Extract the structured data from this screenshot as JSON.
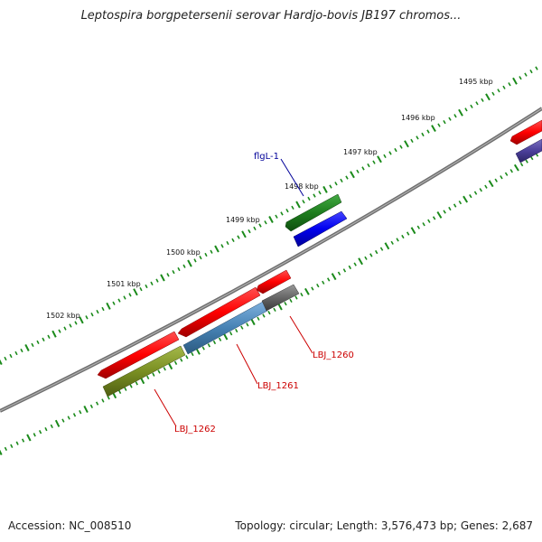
{
  "title": "Leptospira borgpetersenii serovar Hardjo-bovis JB197 chromos...",
  "footer": {
    "accession": "Accession: NC_008510",
    "summary": "Topology: circular; Length: 3,576,473 bp; Genes: 2,687"
  },
  "colors": {
    "backbone": "#7a7a7a",
    "ticks": "#1a8a1a",
    "label_red": "#cc0000",
    "label_blue": "#000099"
  },
  "ticks": [
    {
      "label": "1495 kbp"
    },
    {
      "label": "1496 kbp"
    },
    {
      "label": "1497 kbp"
    },
    {
      "label": "1498 kbp"
    },
    {
      "label": "1499 kbp"
    },
    {
      "label": "1500 kbp"
    },
    {
      "label": "1501 kbp"
    },
    {
      "label": "1502 kbp"
    }
  ],
  "gene_labels": [
    {
      "text": "flgL-1",
      "color": "#000099"
    },
    {
      "text": "LBJ_1260",
      "color": "#cc0000"
    },
    {
      "text": "LBJ_1261",
      "color": "#cc0000"
    },
    {
      "text": "LBJ_1262",
      "color": "#cc0000"
    }
  ]
}
